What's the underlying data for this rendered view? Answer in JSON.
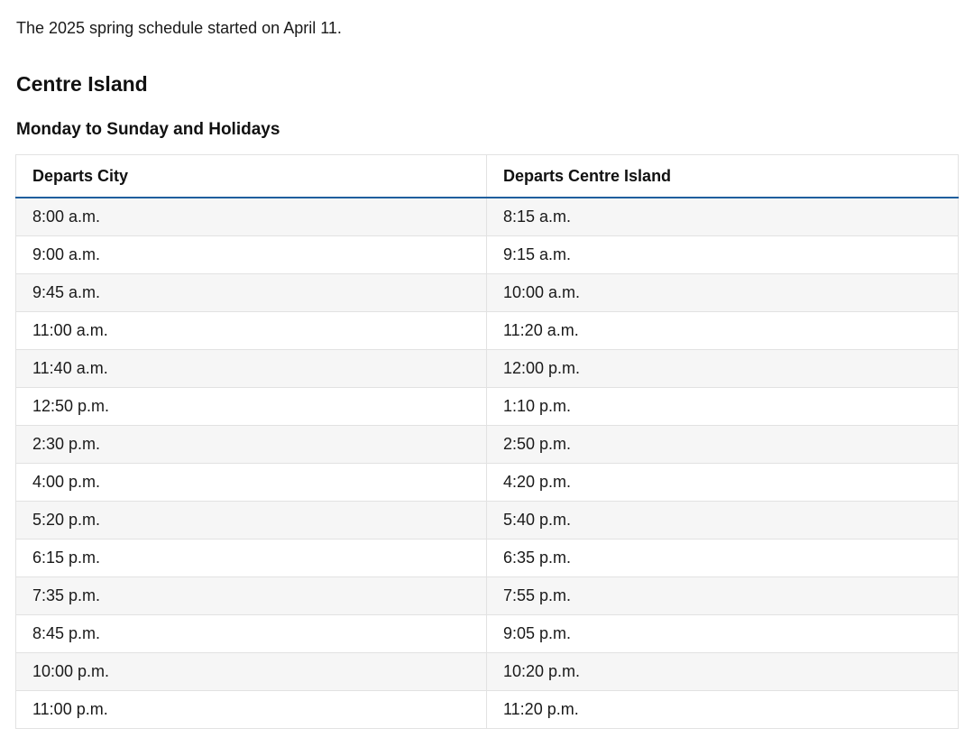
{
  "intro_text": "The 2025 spring schedule started on April 11.",
  "section_title": "Centre Island",
  "schedule_title": "Monday to Sunday and Holidays",
  "table": {
    "headers": [
      "Departs City",
      "Departs Centre Island"
    ],
    "rows": [
      [
        "8:00 a.m.",
        "8:15 a.m."
      ],
      [
        "9:00 a.m.",
        "9:15 a.m."
      ],
      [
        "9:45 a.m.",
        "10:00 a.m."
      ],
      [
        "11:00 a.m.",
        "11:20 a.m."
      ],
      [
        "11:40 a.m.",
        "12:00 p.m."
      ],
      [
        "12:50 p.m.",
        "1:10 p.m."
      ],
      [
        "2:30 p.m.",
        "2:50 p.m."
      ],
      [
        "4:00 p.m.",
        "4:20 p.m."
      ],
      [
        "5:20 p.m.",
        "5:40 p.m."
      ],
      [
        "6:15 p.m.",
        "6:35 p.m."
      ],
      [
        "7:35 p.m.",
        "7:55 p.m."
      ],
      [
        "8:45 p.m.",
        "9:05 p.m."
      ],
      [
        "10:00 p.m.",
        "10:20 p.m."
      ],
      [
        "11:00 p.m.",
        "11:20 p.m."
      ]
    ]
  },
  "colors": {
    "header_underline": "#1f5f9e",
    "row_stripe": "#f6f6f6",
    "border": "#e2e2e2"
  }
}
